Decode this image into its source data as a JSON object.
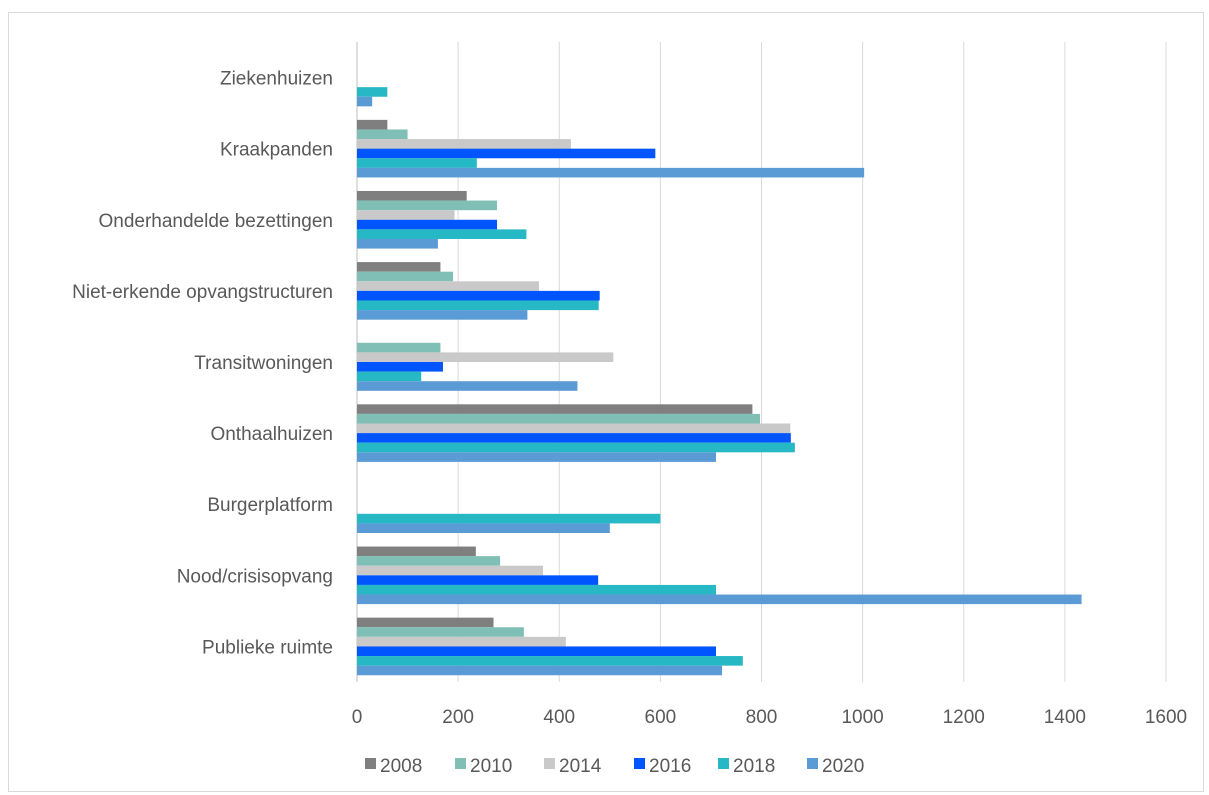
{
  "chart_data": {
    "type": "bar",
    "orientation": "horizontal",
    "title": "",
    "xlabel": "",
    "ylabel": "",
    "categories": [
      "Publieke ruimte",
      "Nood/crisisopvang",
      "Burgerplatform",
      "Onthaalhuizen",
      "Transitwoningen",
      "Niet-erkende opvangstructuren",
      "Onderhandelde bezettingen",
      "Kraakpanden",
      "Ziekenhuizen"
    ],
    "series": [
      {
        "name": "2008",
        "color": "#7f7f7f",
        "values": [
          270,
          235,
          null,
          782,
          null,
          165,
          217,
          60,
          null
        ]
      },
      {
        "name": "2010",
        "color": "#7fbfb5",
        "values": [
          330,
          283,
          null,
          797,
          165,
          190,
          277,
          100,
          null
        ]
      },
      {
        "name": "2014",
        "color": "#c9c9c9",
        "values": [
          413,
          368,
          null,
          857,
          507,
          360,
          193,
          423,
          null
        ]
      },
      {
        "name": "2016",
        "color": "#0055ff",
        "values": [
          710,
          477,
          null,
          858,
          170,
          480,
          277,
          590,
          null
        ]
      },
      {
        "name": "2018",
        "color": "#26b8c4",
        "values": [
          763,
          710,
          600,
          866,
          127,
          478,
          335,
          237,
          60
        ]
      },
      {
        "name": "2020",
        "color": "#5b9bd5",
        "values": [
          722,
          1433,
          500,
          710,
          436,
          337,
          160,
          1003,
          30
        ]
      }
    ],
    "xlim": [
      0,
      1600
    ],
    "xticks": [
      "0",
      "200",
      "400",
      "600",
      "800",
      "1000",
      "1200",
      "1400",
      "1600"
    ],
    "grid": true,
    "legend_position": "bottom"
  }
}
